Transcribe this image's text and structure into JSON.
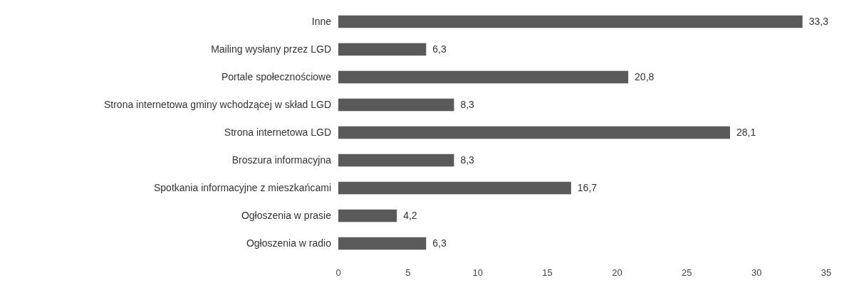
{
  "chart_data": {
    "type": "bar",
    "orientation": "horizontal",
    "categories": [
      "Inne",
      "Mailing wysłany przez LGD",
      "Portale społecznościowe",
      "Strona internetowa gminy wchodzącej w skład LGD",
      "Strona internetowa LGD",
      "Broszura informacyjna",
      "Spotkania informacyjne z mieszkańcami",
      "Ogłoszenia w prasie",
      "Ogłoszenia w radio"
    ],
    "values": [
      33.3,
      6.3,
      20.8,
      8.3,
      28.1,
      8.3,
      16.7,
      4.2,
      6.3
    ],
    "value_labels": [
      "33,3",
      "6,3",
      "20,8",
      "8,3",
      "28,1",
      "8,3",
      "16,7",
      "4,2",
      "6,3"
    ],
    "color": "#5a5a5a",
    "xlim": [
      0,
      35
    ],
    "xticks": [
      0,
      5,
      10,
      15,
      20,
      25,
      30,
      35
    ],
    "grid": false
  }
}
